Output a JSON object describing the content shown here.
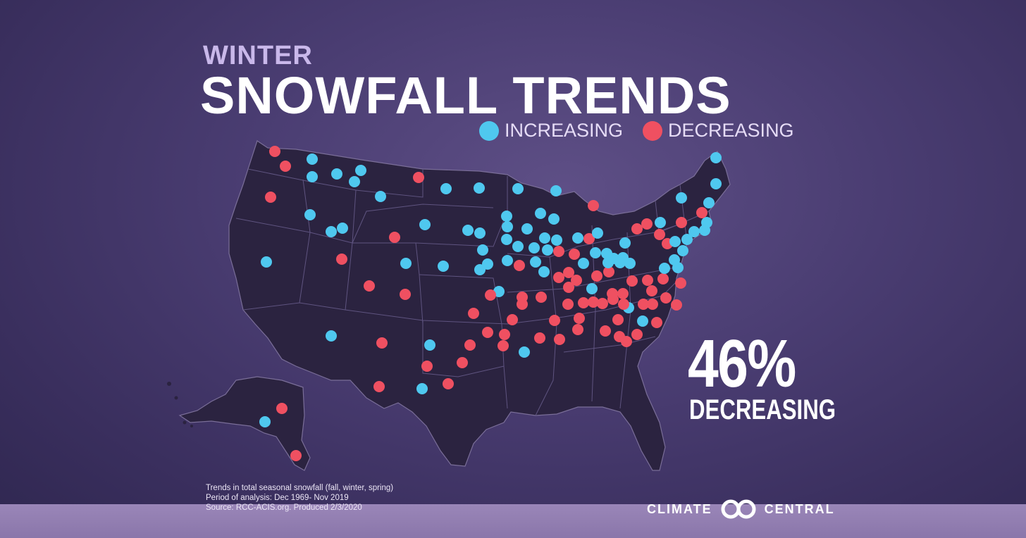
{
  "title": {
    "line1": "WINTER",
    "line2": "SNOWFALL TRENDS"
  },
  "legend": {
    "increasing": {
      "label": "INCREASING",
      "color": "#4fc8ef"
    },
    "decreasing": {
      "label": "DECREASING",
      "color": "#ef5061"
    }
  },
  "stat": {
    "value": "46%",
    "label": "DECREASING"
  },
  "notes": [
    "Trends in total seasonal snowfall (fall, winter, spring)",
    "Period of analysis: Dec 1969- Nov 2019",
    "Source: RCC-ACIS.org. Produced 2/3/2020"
  ],
  "brand": {
    "left": "CLIMATE",
    "right": "CENTRAL",
    "logo_icon": "climate-central-logo-icon"
  },
  "map": {
    "land_color": "#2b2340",
    "border_color": "#6a5e88"
  }
}
